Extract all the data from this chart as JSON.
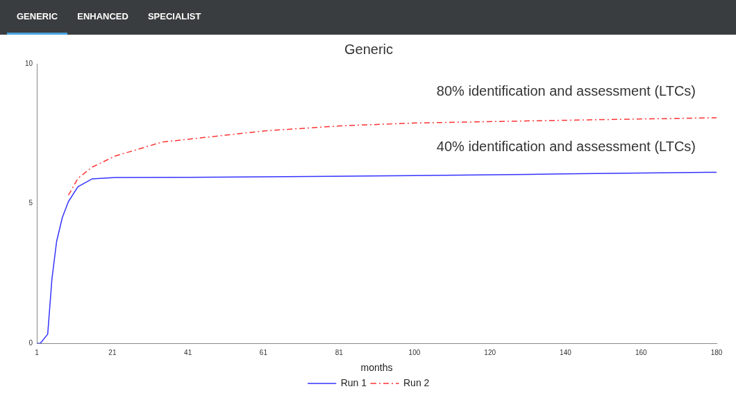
{
  "chart_data": {
    "type": "line",
    "title": "Generic",
    "xlabel": "months",
    "xlim": [
      1,
      180
    ],
    "xticks": [
      1,
      {
        "value": 20.89,
        "label": "21"
      },
      {
        "value": 40.78,
        "label": "41"
      },
      {
        "value": 60.67,
        "label": "61"
      },
      {
        "value": 80.56,
        "label": "81"
      },
      {
        "value": 100.44,
        "label": "100"
      },
      {
        "value": 120.33,
        "label": "120"
      },
      {
        "value": 140.22,
        "label": "140"
      },
      {
        "value": 160.11,
        "label": "160"
      },
      180
    ],
    "ylim": [
      0,
      10
    ],
    "yticks": [
      0,
      5,
      10
    ],
    "grid": false,
    "legend": "bottom",
    "marker": "none",
    "series": [
      {
        "name": "Run 1",
        "color": "#3333ff",
        "line_style": "solid",
        "x": [
          1,
          1.9,
          3.85,
          4.96,
          6.2,
          7.7,
          9.3,
          11.8,
          15.5,
          21.6,
          41,
          61,
          100,
          140,
          180
        ],
        "values": [
          0,
          0,
          0.33,
          2.3,
          3.65,
          4.5,
          5.07,
          5.6,
          5.88,
          5.93,
          5.94,
          5.96,
          6.0,
          6.06,
          6.12
        ]
      },
      {
        "name": "Run 2",
        "color": "#ff3333",
        "line_style": "dashed",
        "x": [
          9.3,
          11.8,
          15.5,
          21.6,
          34,
          61,
          81,
          100,
          140,
          180
        ],
        "values": [
          5.3,
          5.9,
          6.3,
          6.7,
          7.2,
          7.6,
          7.78,
          7.88,
          7.98,
          8.07
        ]
      }
    ],
    "annotations": [
      "GENERIC",
      "ENHANCED",
      "SPECIALIST",
      "80% identification and assessment (LTCs)",
      "40% identification and assessment (LTCs)"
    ]
  }
}
